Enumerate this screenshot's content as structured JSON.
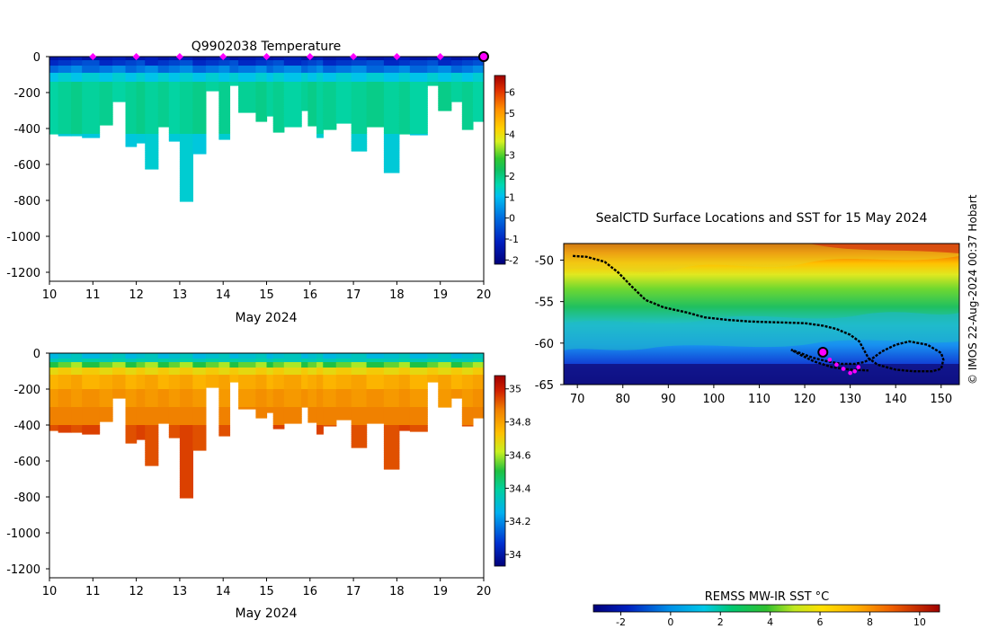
{
  "temp_panel": {
    "title": "Q9902038  Temperature",
    "xlabel": "May 2024",
    "ylim": [
      -1250,
      0
    ],
    "xlim": [
      10,
      20
    ],
    "yticks": [
      0,
      -200,
      -400,
      -600,
      -800,
      -1000,
      -1200
    ],
    "xticks": [
      10,
      11,
      12,
      13,
      14,
      15,
      16,
      17,
      18,
      19,
      20
    ],
    "cbar_ticks": [
      6,
      5,
      4,
      3,
      2,
      1,
      0,
      -1,
      -2
    ],
    "cbar_range": [
      -2.2,
      6.8
    ]
  },
  "salinity_panel": {
    "xlabel": "May 2024",
    "ylim": [
      -1250,
      0
    ],
    "xlim": [
      10,
      20
    ],
    "yticks": [
      0,
      -200,
      -400,
      -600,
      -800,
      -1000,
      -1200
    ],
    "xticks": [
      10,
      11,
      12,
      13,
      14,
      15,
      16,
      17,
      18,
      19,
      20
    ],
    "cbar_ticks": [
      35,
      34.8,
      34.6,
      34.4,
      34.2,
      34
    ],
    "cbar_range": [
      33.93,
      35.08
    ]
  },
  "map_panel": {
    "title": "SealCTD Surface Locations and SST for 15 May 2024",
    "xlim": [
      67,
      154
    ],
    "ylim": [
      -65,
      -48
    ],
    "xticks": [
      70,
      80,
      90,
      100,
      110,
      120,
      130,
      140,
      150
    ],
    "yticks": [
      -50,
      -55,
      -60,
      -65
    ],
    "cbar_label": "REMSS MW-IR SST °C",
    "cbar_ticks": [
      -2,
      0,
      2,
      4,
      6,
      8,
      10
    ],
    "cbar_range": [
      -3.1,
      10.8
    ],
    "credit": "© IMOS 22-Aug-2024 00:37 Hobart"
  },
  "chart_data": [
    {
      "type": "heatmap",
      "title": "Q9902038  Temperature",
      "xlabel": "May 2024",
      "ylabel": "",
      "ylim": [
        -1250,
        0
      ],
      "profiles": [
        {
          "start": 10.0,
          "end": 10.2,
          "depth": 430
        },
        {
          "start": 10.2,
          "end": 10.5,
          "depth": 440
        },
        {
          "start": 10.5,
          "end": 10.75,
          "depth": 440
        },
        {
          "start": 10.75,
          "end": 11.15,
          "depth": 450
        },
        {
          "start": 11.15,
          "end": 11.45,
          "depth": 380
        },
        {
          "start": 11.45,
          "end": 11.75,
          "depth": 250
        },
        {
          "start": 11.75,
          "end": 12.0,
          "depth": 500
        },
        {
          "start": 12.0,
          "end": 12.2,
          "depth": 480
        },
        {
          "start": 12.2,
          "end": 12.5,
          "depth": 625
        },
        {
          "start": 12.5,
          "end": 12.75,
          "depth": 390
        },
        {
          "start": 12.75,
          "end": 13.0,
          "depth": 470
        },
        {
          "start": 13.0,
          "end": 13.3,
          "depth": 805
        },
        {
          "start": 13.3,
          "end": 13.6,
          "depth": 540
        },
        {
          "start": 13.6,
          "end": 13.9,
          "depth": 190
        },
        {
          "start": 13.9,
          "end": 14.15,
          "depth": 460
        },
        {
          "start": 14.15,
          "end": 14.35,
          "depth": 160
        },
        {
          "start": 14.35,
          "end": 14.75,
          "depth": 310
        },
        {
          "start": 14.75,
          "end": 15.0,
          "depth": 360
        },
        {
          "start": 15.0,
          "end": 15.15,
          "depth": 330
        },
        {
          "start": 15.15,
          "end": 15.4,
          "depth": 420
        },
        {
          "start": 15.4,
          "end": 15.8,
          "depth": 390
        },
        {
          "start": 15.8,
          "end": 15.95,
          "depth": 300
        },
        {
          "start": 15.95,
          "end": 16.15,
          "depth": 385
        },
        {
          "start": 16.15,
          "end": 16.3,
          "depth": 450
        },
        {
          "start": 16.3,
          "end": 16.6,
          "depth": 405
        },
        {
          "start": 16.6,
          "end": 16.95,
          "depth": 370
        },
        {
          "start": 16.95,
          "end": 17.3,
          "depth": 525
        },
        {
          "start": 17.3,
          "end": 17.7,
          "depth": 390
        },
        {
          "start": 17.7,
          "end": 18.05,
          "depth": 645
        },
        {
          "start": 18.05,
          "end": 18.3,
          "depth": 430
        },
        {
          "start": 18.3,
          "end": 18.7,
          "depth": 435
        },
        {
          "start": 18.7,
          "end": 18.95,
          "depth": 160
        },
        {
          "start": 18.95,
          "end": 19.25,
          "depth": 300
        },
        {
          "start": 19.25,
          "end": 19.5,
          "depth": 250
        },
        {
          "start": 19.5,
          "end": 19.75,
          "depth": 405
        },
        {
          "start": 19.75,
          "end": 20.0,
          "depth": 360
        }
      ],
      "surface_markers": [
        11,
        12,
        13,
        14,
        15,
        16,
        17,
        18,
        19
      ],
      "current_position": 20,
      "colorbar": {
        "min": -2,
        "max": 6
      }
    },
    {
      "type": "heatmap",
      "title": "",
      "xlabel": "May 2024",
      "ylim": [
        -1250,
        0
      ],
      "same_profiles_as": "temperature",
      "colorbar": {
        "min": 34,
        "max": 35
      }
    },
    {
      "type": "scatter",
      "title": "SealCTD Surface Locations and SST for 15 May 2024",
      "xlim": [
        67,
        154
      ],
      "ylim": [
        -65,
        -48
      ],
      "track": [
        [
          69,
          -49.5
        ],
        [
          72,
          -49.6
        ],
        [
          76,
          -50.2
        ],
        [
          79,
          -51.5
        ],
        [
          82,
          -53.2
        ],
        [
          85,
          -54.8
        ],
        [
          89,
          -55.7
        ],
        [
          94,
          -56.3
        ],
        [
          98,
          -56.9
        ],
        [
          103,
          -57.2
        ],
        [
          108,
          -57.4
        ],
        [
          114,
          -57.5
        ],
        [
          120,
          -57.6
        ],
        [
          124,
          -57.9
        ],
        [
          127,
          -58.3
        ],
        [
          130,
          -59.0
        ],
        [
          132,
          -59.8
        ],
        [
          133,
          -60.8
        ],
        [
          134,
          -61.8
        ],
        [
          136,
          -62.6
        ],
        [
          140,
          -63.2
        ],
        [
          144,
          -63.4
        ],
        [
          148,
          -63.4
        ],
        [
          150,
          -63.1
        ],
        [
          150.5,
          -62.0
        ],
        [
          150,
          -61.2
        ],
        [
          147,
          -60.2
        ],
        [
          143,
          -59.8
        ],
        [
          140,
          -60.2
        ],
        [
          137,
          -61.0
        ],
        [
          135,
          -61.8
        ],
        [
          133,
          -62.3
        ],
        [
          131,
          -62.5
        ],
        [
          128,
          -62.5
        ],
        [
          125,
          -62.2
        ],
        [
          122,
          -61.8
        ],
        [
          119,
          -61.2
        ],
        [
          117,
          -60.8
        ],
        [
          119,
          -61.4
        ],
        [
          122,
          -62.2
        ],
        [
          126,
          -62.9
        ],
        [
          130,
          -63.2
        ],
        [
          134,
          -63.3
        ]
      ],
      "recent_surface_points": [
        [
          124,
          -61.1
        ],
        [
          125.5,
          -62.0
        ],
        [
          127,
          -62.6
        ],
        [
          128.5,
          -63.1
        ],
        [
          130,
          -63.6
        ],
        [
          131,
          -63.4
        ],
        [
          131.8,
          -62.9
        ]
      ],
      "current_position": [
        124,
        -61.1
      ]
    }
  ]
}
